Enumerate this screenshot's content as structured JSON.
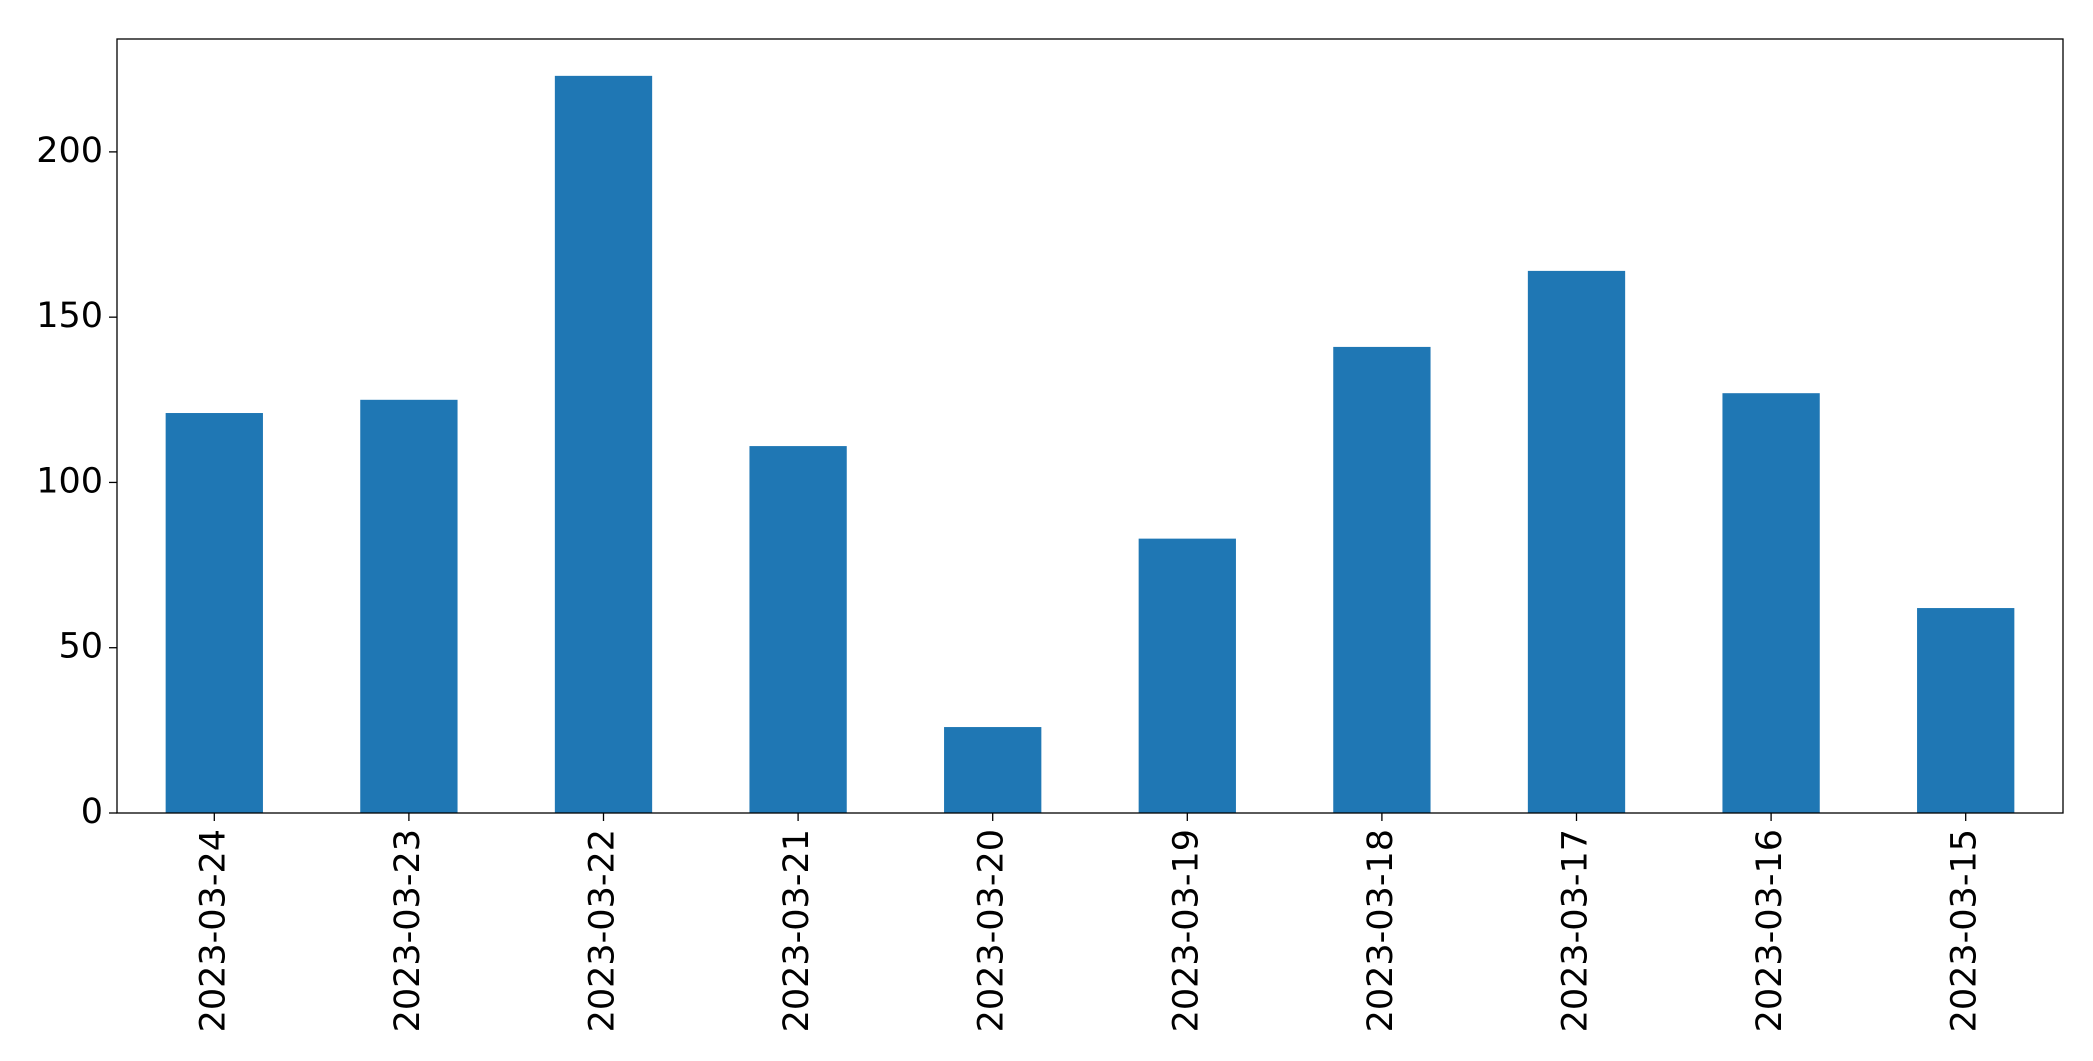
{
  "chart_data": {
    "type": "bar",
    "categories": [
      "2023-03-24",
      "2023-03-23",
      "2023-03-22",
      "2023-03-21",
      "2023-03-20",
      "2023-03-19",
      "2023-03-18",
      "2023-03-17",
      "2023-03-16",
      "2023-03-15"
    ],
    "values": [
      121,
      125,
      223,
      111,
      26,
      83,
      141,
      164,
      127,
      62
    ],
    "color": "#1f77b4",
    "ylim": [
      0,
      234.15
    ],
    "yticks": [
      0,
      50,
      100,
      150,
      200
    ],
    "grid": false
  }
}
